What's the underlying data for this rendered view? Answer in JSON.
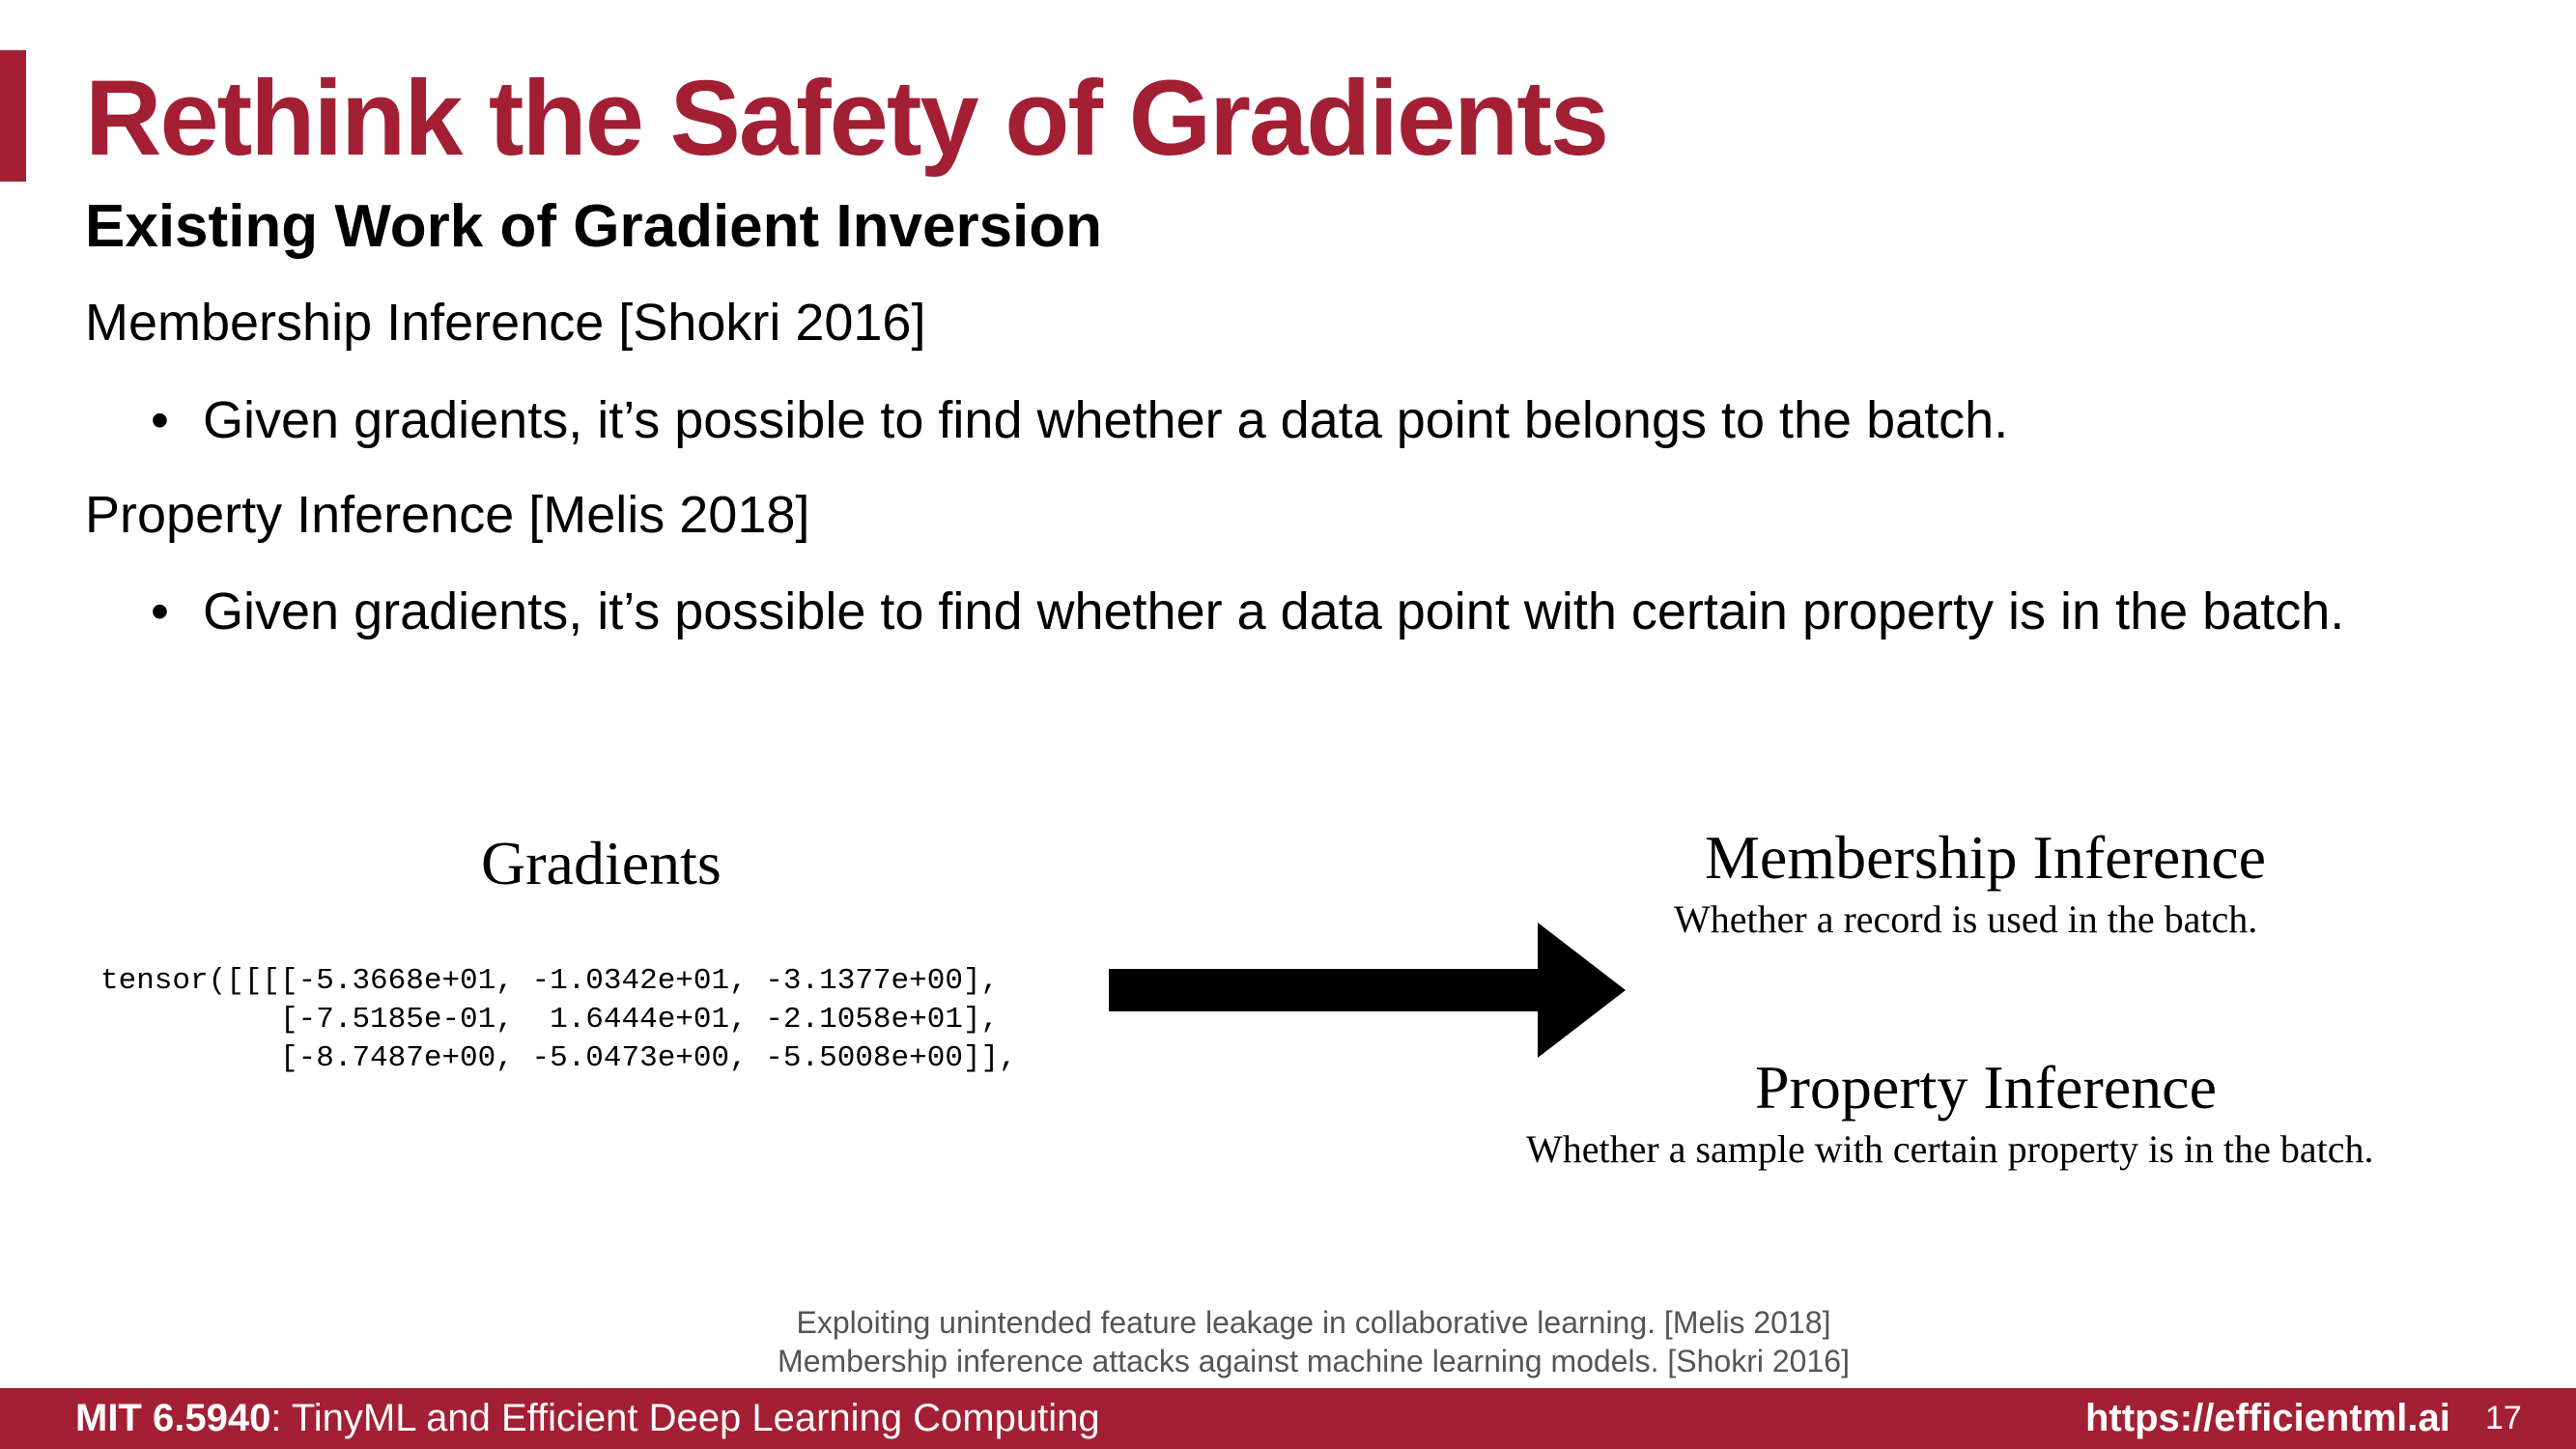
{
  "slide": {
    "title": "Rethink the Safety of Gradients",
    "subtitle": "Existing Work of Gradient Inversion",
    "section1_heading": "Membership Inference [Shokri 2016]",
    "section1_bullet": "Given gradients, it’s possible to find whether a data point belongs to the batch.",
    "section2_heading": "Property Inference [Melis 2018]",
    "section2_bullet": "Given gradients, it’s possible to find whether a data point with certain property is in the batch.",
    "bullet_symbol": "•"
  },
  "diagram": {
    "left_title": "Gradients",
    "tensor_lines": [
      "tensor([[[[-5.3668e+01, -1.0342e+01, -3.1377e+00],",
      "          [-7.5185e-01,  1.6444e+01, -2.1058e+01],",
      "          [-8.7487e+00, -5.0473e+00, -5.5008e+00]],"
    ],
    "right_items": [
      {
        "title": "Membership Inference",
        "description": "Whether a record is used in the batch."
      },
      {
        "title": "Property Inference",
        "description": "Whether a sample with certain property is in the batch."
      }
    ],
    "arrow_icon": "right-arrow-icon"
  },
  "references": [
    "Exploiting unintended feature leakage in collaborative learning. [Melis 2018]",
    "Membership inference attacks  against machine learning models. [Shokri 2016]"
  ],
  "footer": {
    "course_code": "MIT 6.5940",
    "course_name": ": TinyML and Efficient Deep Learning Computing",
    "url": "https://efficientml.ai",
    "page_number": "17"
  },
  "colors": {
    "accent": "#a31f34",
    "reference_text": "#555555"
  }
}
